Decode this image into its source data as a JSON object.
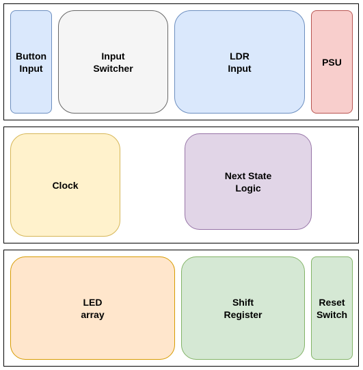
{
  "diagram": {
    "top_group": {
      "blocks": [
        {
          "label": "Button\nInput",
          "fill": "#dae8fc",
          "stroke": "#6c8ebf"
        },
        {
          "label": "Input\nSwitcher",
          "fill": "#f5f5f5",
          "stroke": "#666666"
        },
        {
          "label": "LDR\nInput",
          "fill": "#dae8fc",
          "stroke": "#6c8ebf"
        },
        {
          "label": "PSU",
          "fill": "#f8cecc",
          "stroke": "#b85450"
        }
      ]
    },
    "middle_group": {
      "blocks": [
        {
          "label": "Clock",
          "fill": "#fff2cc",
          "stroke": "#d6b656"
        },
        {
          "label": "Next State\nLogic",
          "fill": "#e1d5e7",
          "stroke": "#9673a6"
        }
      ]
    },
    "bottom_group": {
      "blocks": [
        {
          "label": "LED\narray",
          "fill": "#ffe6cc",
          "stroke": "#d79b00"
        },
        {
          "label": "Shift\nRegister",
          "fill": "#d5e8d4",
          "stroke": "#82b366"
        },
        {
          "label": "Reset\nSwitch",
          "fill": "#d5e8d4",
          "stroke": "#82b366"
        }
      ]
    }
  }
}
